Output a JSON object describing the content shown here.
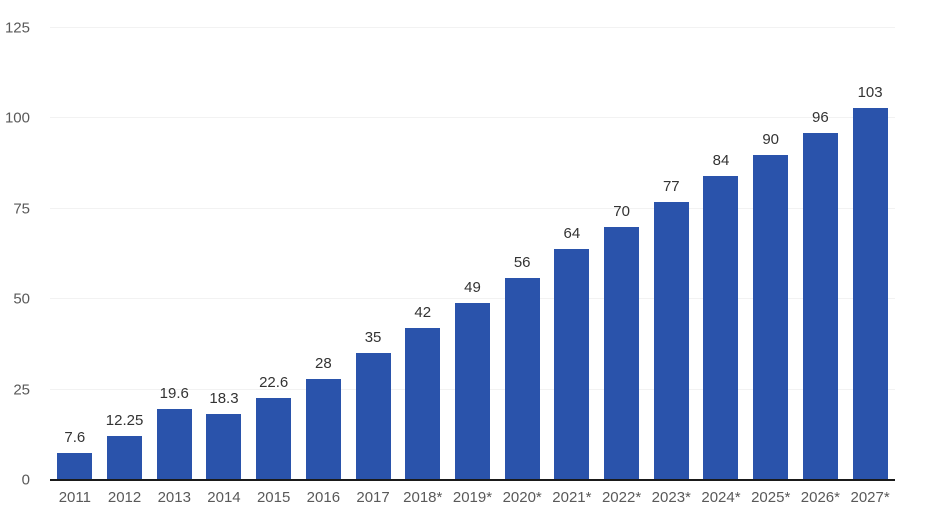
{
  "chart_data": {
    "type": "bar",
    "title": "",
    "xlabel": "",
    "ylabel": "",
    "categories": [
      "2011",
      "2012",
      "2013",
      "2014",
      "2015",
      "2016",
      "2017",
      "2018*",
      "2019*",
      "2020*",
      "2021*",
      "2022*",
      "2023*",
      "2024*",
      "2025*",
      "2026*",
      "2027*"
    ],
    "values": [
      7.6,
      12.25,
      19.6,
      18.3,
      22.6,
      28,
      35,
      42,
      49,
      56,
      64,
      70,
      77,
      84,
      90,
      96,
      103
    ],
    "value_labels": [
      "7.6",
      "12.25",
      "19.6",
      "18.3",
      "22.6",
      "28",
      "35",
      "42",
      "49",
      "56",
      "64",
      "70",
      "77",
      "84",
      "90",
      "96",
      "103"
    ],
    "ylim": [
      0,
      125
    ],
    "yticks": [
      0,
      25,
      50,
      75,
      100,
      125
    ],
    "ytick_labels": [
      "0",
      "25",
      "50",
      "75",
      "100",
      "125"
    ],
    "grid": "horizontal-faint",
    "legend": "none",
    "bar_color": "#2a53ab",
    "axis_line_color": "#1a1a1a",
    "label_color": "#333333",
    "tick_label_color": "#595959"
  }
}
